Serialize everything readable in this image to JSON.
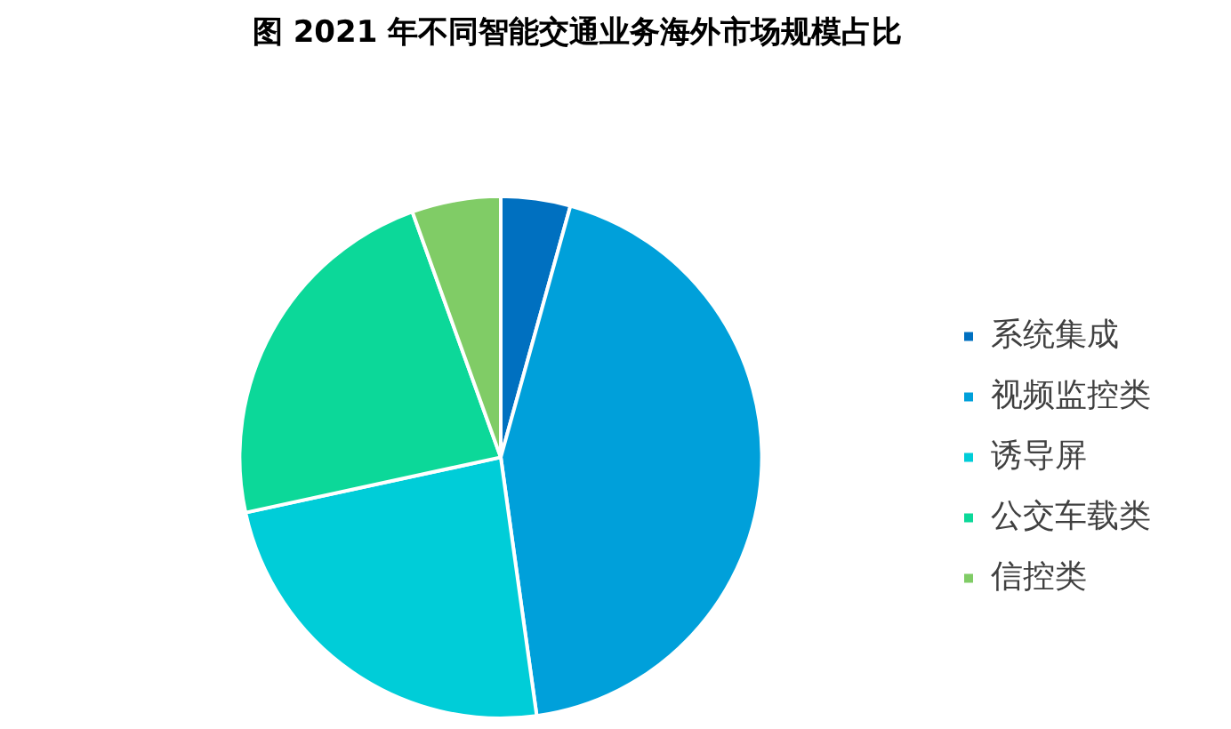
{
  "chart_data": {
    "type": "pie",
    "title": "图 2021 年不同智能交通业务海外市场规模占比",
    "categories": [
      "系统集成",
      "视频监控类",
      "诱导屏",
      "公交车载类",
      "信控类"
    ],
    "values": [
      4.3,
      43.5,
      23.8,
      22.9,
      5.5
    ],
    "colors": [
      "#0070c0",
      "#00a0da",
      "#00cdd8",
      "#0cd899",
      "#80cc66"
    ],
    "legend": "right"
  }
}
